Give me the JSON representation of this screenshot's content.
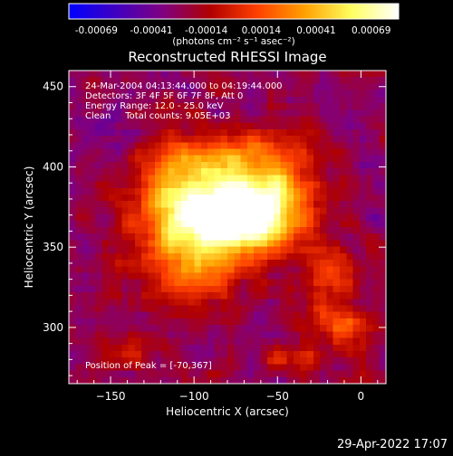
{
  "colorbar": {
    "ticks": [
      "-0.00069",
      "-0.00041",
      "-0.00014",
      "0.00014",
      "0.00041",
      "0.00069"
    ],
    "unit_label": "(photons cm⁻² s⁻¹ asec⁻²)",
    "colors": [
      "#0000ff",
      "#4000c0",
      "#800080",
      "#b00000",
      "#ff4000",
      "#ffa000",
      "#ffff60",
      "#ffffff"
    ]
  },
  "chart_data": {
    "type": "heatmap",
    "title": "Reconstructed RHESSI Image",
    "xlabel": "Heliocentric X (arcsec)",
    "ylabel": "Heliocentric Y (arcsec)",
    "xlim": [
      -175,
      15
    ],
    "ylim": [
      265,
      460
    ],
    "xticks": [
      -150,
      -100,
      -50,
      0
    ],
    "yticks": [
      300,
      350,
      400,
      450
    ],
    "xtick_labels": [
      "−150",
      "−100",
      "−50",
      "0"
    ],
    "ytick_labels": [
      "300",
      "350",
      "400",
      "450"
    ],
    "annotations": [
      "24-Mar-2004 04:13:44.000 to 04:19:44.000",
      "Detectors: 3F 4F 5F 6F 7F 8F, Att 0",
      "Energy Range: 12.0 - 25.0 keV",
      "Clean     Total counts: 9.05E+03"
    ],
    "peak_label": "Position of Peak = [-70,367]",
    "peak": [
      -70,
      367
    ],
    "sources": [
      {
        "x": -70,
        "y": 367,
        "amp": 1.0,
        "sx": 22,
        "sy": 14
      },
      {
        "x": -95,
        "y": 362,
        "amp": 0.55,
        "sx": 20,
        "sy": 20
      },
      {
        "x": -85,
        "y": 395,
        "amp": 0.55,
        "sx": 25,
        "sy": 18
      },
      {
        "x": -50,
        "y": 390,
        "amp": 0.4,
        "sx": 15,
        "sy": 22
      },
      {
        "x": -120,
        "y": 380,
        "amp": 0.35,
        "sx": 15,
        "sy": 25
      },
      {
        "x": -20,
        "y": 330,
        "amp": 0.35,
        "sx": 12,
        "sy": 15
      },
      {
        "x": -10,
        "y": 300,
        "amp": 0.35,
        "sx": 12,
        "sy": 8
      },
      {
        "x": -140,
        "y": 285,
        "amp": 0.25,
        "sx": 10,
        "sy": 8
      },
      {
        "x": -40,
        "y": 280,
        "amp": 0.25,
        "sx": 12,
        "sy": 6
      },
      {
        "x": -100,
        "y": 330,
        "amp": 0.3,
        "sx": 20,
        "sy": 12
      },
      {
        "x": -150,
        "y": 420,
        "amp": -0.15,
        "sx": 15,
        "sy": 15
      },
      {
        "x": -30,
        "y": 440,
        "amp": -0.1,
        "sx": 20,
        "sy": 10
      }
    ]
  },
  "footer": {
    "date": "29-Apr-2022 17:07"
  }
}
